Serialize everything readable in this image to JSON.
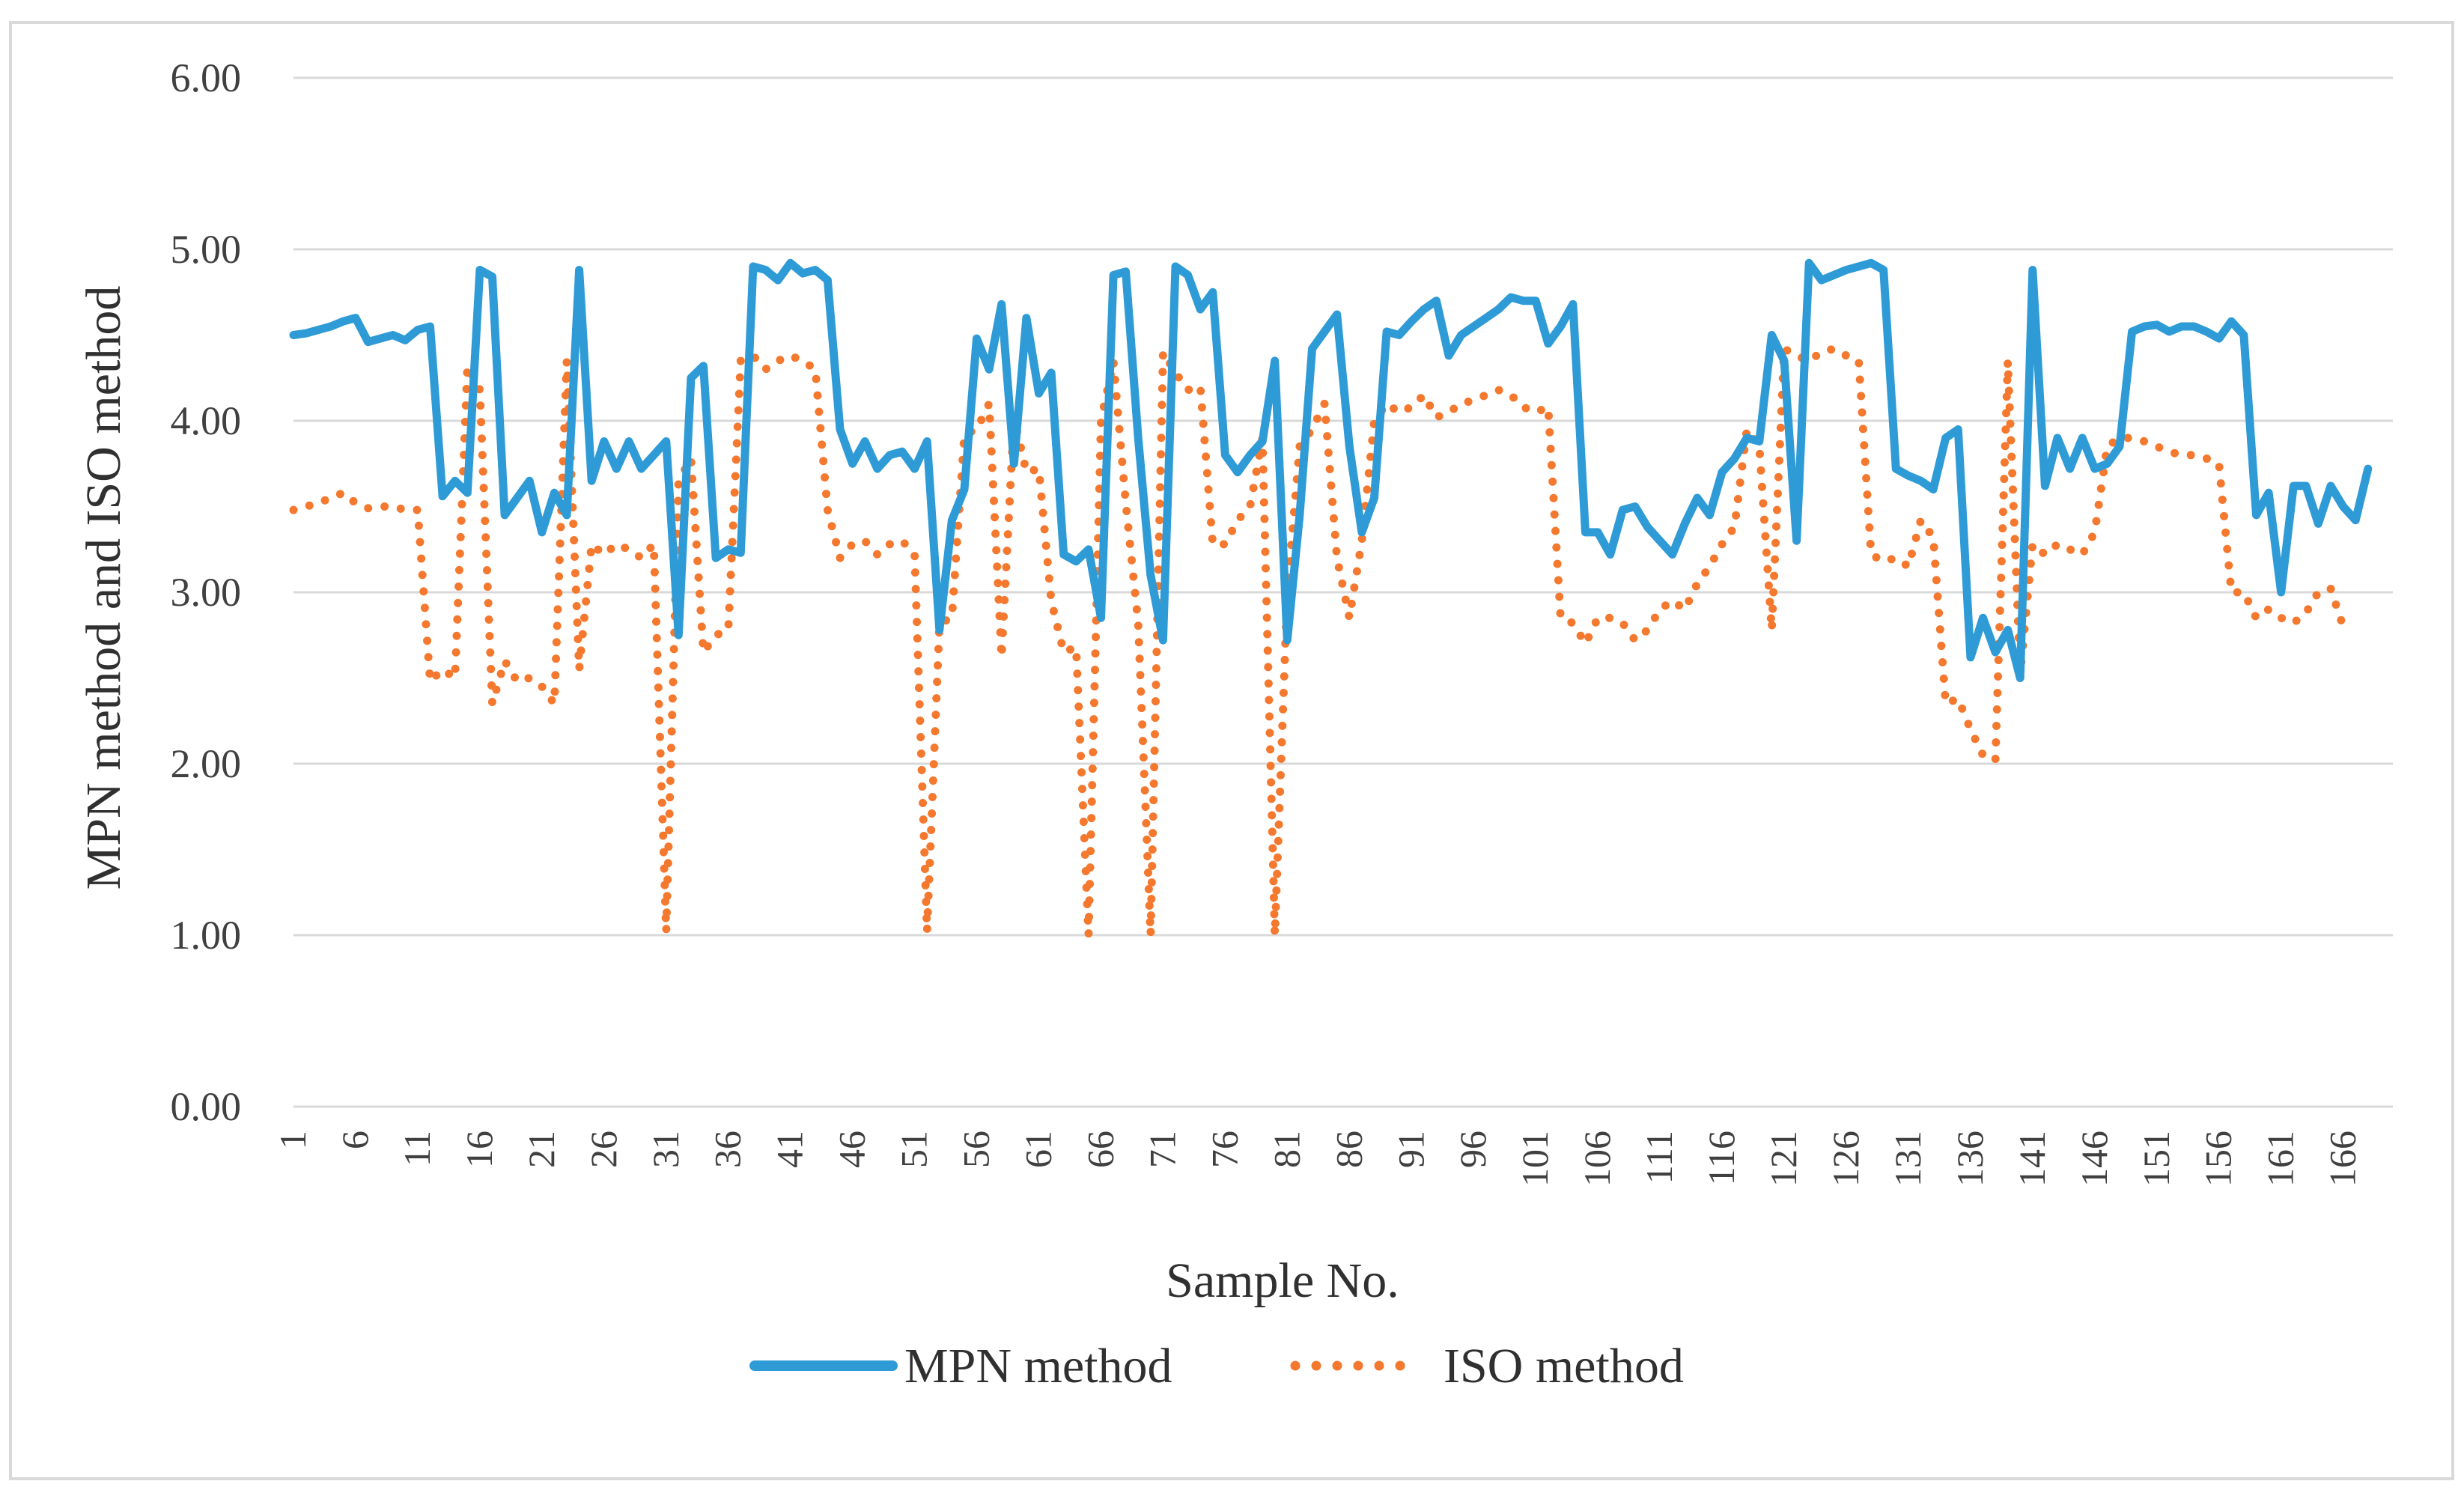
{
  "chart_data": {
    "type": "line",
    "title": "",
    "xlabel": "Sample No.",
    "ylabel": "MPN method and  ISO method",
    "ylim": [
      0,
      6
    ],
    "y_ticks": [
      "0.00",
      "1.00",
      "2.00",
      "3.00",
      "4.00",
      "5.00",
      "6.00"
    ],
    "x_range": [
      1,
      170
    ],
    "x_tick_labels": [
      "1",
      "6",
      "11",
      "16",
      "21",
      "26",
      "31",
      "36",
      "41",
      "46",
      "51",
      "56",
      "61",
      "66",
      "71",
      "76",
      "81",
      "86",
      "91",
      "96",
      "101",
      "106",
      "111",
      "116",
      "121",
      "126",
      "131",
      "136",
      "141",
      "146",
      "151",
      "156",
      "161",
      "166"
    ],
    "grid": "horizontal",
    "legend_position": "bottom",
    "colors": {
      "MPN method": "#2E9BD6",
      "ISO method": "#F4782E",
      "grid": "#D9D9D9",
      "frame": "#D9D9D9"
    },
    "series": [
      {
        "name": "MPN method",
        "style": "solid",
        "values": [
          4.5,
          4.51,
          4.53,
          4.55,
          4.58,
          4.6,
          4.46,
          4.48,
          4.5,
          4.47,
          4.53,
          4.55,
          3.56,
          3.65,
          3.58,
          4.88,
          4.84,
          3.45,
          3.55,
          3.65,
          3.35,
          3.58,
          3.45,
          4.88,
          3.65,
          3.88,
          3.72,
          3.88,
          3.72,
          3.8,
          3.88,
          2.75,
          4.25,
          4.32,
          3.2,
          3.25,
          3.23,
          4.9,
          4.88,
          4.82,
          4.92,
          4.86,
          4.88,
          4.82,
          3.95,
          3.75,
          3.88,
          3.72,
          3.8,
          3.82,
          3.72,
          3.88,
          2.78,
          3.42,
          3.6,
          4.48,
          4.3,
          4.68,
          3.75,
          4.6,
          4.16,
          4.28,
          3.22,
          3.18,
          3.25,
          2.85,
          4.85,
          4.87,
          3.9,
          3.1,
          2.72,
          4.9,
          4.85,
          4.65,
          4.75,
          3.8,
          3.7,
          3.8,
          3.88,
          4.35,
          2.72,
          3.45,
          4.42,
          4.52,
          4.62,
          3.85,
          3.35,
          3.55,
          4.52,
          4.5,
          4.58,
          4.65,
          4.7,
          4.38,
          4.5,
          4.55,
          4.6,
          4.65,
          4.72,
          4.7,
          4.7,
          4.45,
          4.55,
          4.68,
          3.35,
          3.35,
          3.22,
          3.48,
          3.5,
          3.38,
          3.3,
          3.22,
          3.4,
          3.55,
          3.45,
          3.7,
          3.78,
          3.9,
          3.88,
          4.5,
          4.35,
          3.3,
          4.92,
          4.82,
          4.85,
          4.88,
          4.9,
          4.92,
          4.88,
          3.72,
          3.68,
          3.65,
          3.6,
          3.9,
          3.95,
          2.62,
          2.85,
          2.65,
          2.78,
          2.5,
          4.88,
          3.62,
          3.9,
          3.72,
          3.9,
          3.72,
          3.75,
          3.85,
          4.52,
          4.55,
          4.56,
          4.52,
          4.55,
          4.55,
          4.52,
          4.48,
          4.58,
          4.5,
          3.45,
          3.58,
          3.0,
          3.62,
          3.62,
          3.4,
          3.62,
          3.5,
          3.42,
          3.72
        ]
      },
      {
        "name": "ISO method",
        "style": "dotted",
        "values": [
          3.48,
          3.5,
          3.52,
          3.55,
          3.58,
          3.52,
          3.49,
          3.5,
          3.5,
          3.48,
          3.48,
          2.48,
          2.55,
          2.5,
          4.32,
          4.18,
          2.35,
          2.6,
          2.48,
          2.5,
          2.45,
          2.35,
          4.35,
          2.55,
          3.28,
          3.22,
          3.28,
          3.25,
          3.2,
          3.28,
          1.02,
          3.65,
          3.78,
          2.65,
          2.75,
          2.78,
          4.35,
          4.38,
          4.3,
          4.35,
          4.38,
          4.35,
          4.3,
          3.48,
          3.2,
          3.28,
          3.3,
          3.22,
          3.28,
          3.3,
          3.22,
          1.02,
          2.82,
          2.85,
          3.92,
          3.95,
          4.1,
          2.62,
          4.02,
          3.7,
          3.72,
          2.95,
          2.65,
          2.68,
          1.0,
          4.0,
          4.35,
          3.52,
          2.82,
          1.0,
          4.4,
          4.28,
          4.18,
          4.2,
          3.28,
          3.28,
          3.42,
          3.5,
          3.9,
          1.0,
          3.0,
          3.85,
          3.95,
          4.1,
          3.2,
          2.85,
          3.3,
          4.0,
          4.1,
          4.05,
          4.08,
          4.15,
          4.02,
          4.05,
          4.1,
          4.12,
          4.15,
          4.18,
          4.15,
          4.08,
          4.05,
          4.08,
          2.85,
          2.82,
          2.7,
          2.85,
          2.85,
          2.82,
          2.72,
          2.78,
          2.9,
          2.95,
          2.9,
          3.05,
          3.15,
          3.28,
          3.38,
          3.95,
          3.85,
          2.78,
          4.42,
          4.38,
          4.35,
          4.4,
          4.42,
          4.38,
          4.35,
          3.22,
          3.18,
          3.2,
          3.15,
          3.42,
          3.32,
          2.35,
          2.38,
          2.2,
          2.05,
          2.02,
          4.35,
          2.52,
          3.28,
          3.22,
          3.28,
          3.25,
          3.22,
          3.35,
          3.85,
          3.9,
          3.9,
          3.88,
          3.85,
          3.82,
          3.8,
          3.8,
          3.78,
          3.75,
          3.0,
          3.0,
          2.85,
          2.9,
          2.85,
          2.82,
          2.88,
          3.0,
          3.02,
          2.8
        ]
      }
    ]
  }
}
